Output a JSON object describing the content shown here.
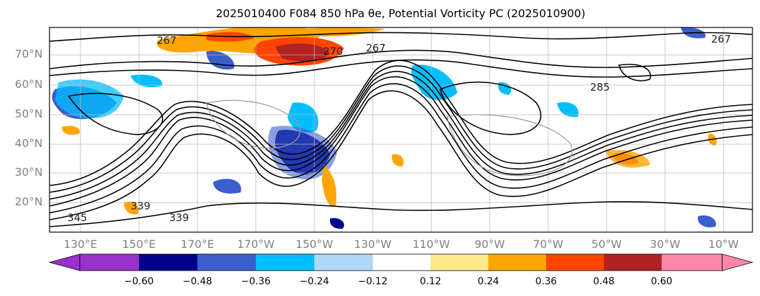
{
  "title": "2025010400 F084 850 hPa θe, Potential Vorticity PC (2025010900)",
  "map": {
    "lat_labels": [
      "70°N",
      "60°N",
      "50°N",
      "40°N",
      "30°N",
      "20°N"
    ],
    "lon_labels": [
      "130°E",
      "150°E",
      "170°E",
      "170°W",
      "150°W",
      "130°W",
      "110°W",
      "90°W",
      "70°W",
      "50°W",
      "30°W",
      "10°W"
    ],
    "contour_labels": [
      "267",
      "270",
      "267",
      "285",
      "267",
      "339",
      "339",
      "345"
    ]
  },
  "colorbar": {
    "ticks": [
      "−0.60",
      "−0.48",
      "−0.36",
      "−0.24",
      "−0.12",
      "0.12",
      "0.24",
      "0.36",
      "0.48",
      "0.60"
    ],
    "colors": [
      "#9932cc",
      "#00008b",
      "#3a5fcd",
      "#00bfff",
      "#add8f6",
      "#ffffff",
      "#ffe98a",
      "#ffa500",
      "#ff4500",
      "#b22222",
      "#ff88aa"
    ]
  }
}
